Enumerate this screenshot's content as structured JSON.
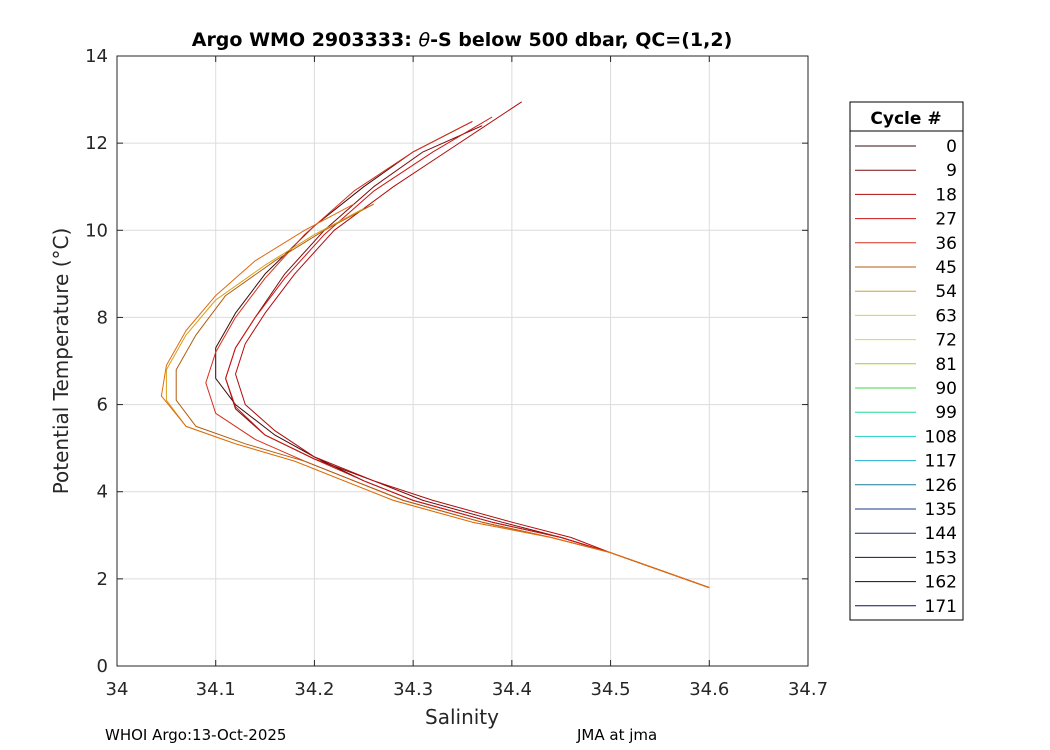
{
  "chart_data": {
    "type": "line",
    "title_prefix": "Argo WMO 2903333: ",
    "title_theta": "θ",
    "title_suffix": "-S below 500 dbar,  QC=(1,2)",
    "xlabel": "Salinity",
    "ylabel": "Potential Temperature (°C)",
    "xlim": [
      34.0,
      34.7
    ],
    "ylim": [
      0,
      14
    ],
    "xticks": [
      "34",
      "34.1",
      "34.2",
      "34.3",
      "34.4",
      "34.5",
      "34.6",
      "34.7"
    ],
    "yticks": [
      "0",
      "2",
      "4",
      "6",
      "8",
      "10",
      "12",
      "14"
    ],
    "grid": true,
    "legend": {
      "title": "Cycle #",
      "placement": "right",
      "entries": [
        "0",
        "9",
        "18",
        "27",
        "36",
        "45",
        "54",
        "63",
        "72",
        "81",
        "90",
        "99",
        "108",
        "117",
        "126",
        "135",
        "144",
        "153",
        "162",
        "171"
      ],
      "colors": [
        "#3a0b0b",
        "#7a0b0b",
        "#b10a0a",
        "#cc1414",
        "#d8301c",
        "#b05e10",
        "#d8a018",
        "#e8d020",
        "#d8e020",
        "#90d820",
        "#40d840",
        "#20d890",
        "#20d0c8",
        "#20b0d0",
        "#1a7a9a",
        "#1a3a8a",
        "#102a70",
        "#0a1a50",
        "#06102e",
        "#0a1060"
      ]
    },
    "series": [
      {
        "color": "#3a0b0b",
        "x": [
          34.6,
          34.55,
          34.5,
          34.45,
          34.38,
          34.3,
          34.25,
          34.2,
          34.16,
          34.12,
          34.1,
          34.1,
          34.12,
          34.15,
          34.2,
          34.25,
          34.3,
          34.36
        ],
        "y": [
          1.8,
          2.2,
          2.6,
          2.95,
          3.3,
          3.8,
          4.25,
          4.8,
          5.3,
          6.0,
          6.6,
          7.3,
          8.1,
          9.0,
          10.1,
          11.0,
          11.8,
          12.5
        ]
      },
      {
        "color": "#7a0b0b",
        "x": [
          34.6,
          34.55,
          34.5,
          34.45,
          34.39,
          34.31,
          34.26,
          34.2,
          34.15,
          34.12,
          34.11,
          34.12,
          34.14,
          34.17,
          34.21,
          34.26,
          34.31,
          34.37
        ],
        "y": [
          1.8,
          2.2,
          2.6,
          2.95,
          3.3,
          3.8,
          4.25,
          4.75,
          5.3,
          5.9,
          6.6,
          7.3,
          8.0,
          9.0,
          10.0,
          11.0,
          11.8,
          12.4
        ]
      },
      {
        "color": "#b10a0a",
        "x": [
          34.6,
          34.55,
          34.5,
          34.46,
          34.4,
          34.32,
          34.26,
          34.2,
          34.16,
          34.13,
          34.12,
          34.13,
          34.15,
          34.18,
          34.22,
          34.28,
          34.34,
          34.41
        ],
        "y": [
          1.8,
          2.2,
          2.6,
          2.95,
          3.3,
          3.8,
          4.25,
          4.8,
          5.4,
          6.0,
          6.7,
          7.4,
          8.1,
          9.0,
          10.0,
          11.0,
          11.9,
          12.95
        ]
      },
      {
        "color": "#cc1414",
        "x": [
          34.6,
          34.55,
          34.5,
          34.45,
          34.38,
          34.3,
          34.25,
          34.2,
          34.15,
          34.12,
          34.11,
          34.12,
          34.14,
          34.17,
          34.21,
          34.26,
          34.32,
          34.38
        ],
        "y": [
          1.8,
          2.2,
          2.6,
          2.95,
          3.3,
          3.8,
          4.25,
          4.75,
          5.3,
          5.95,
          6.6,
          7.3,
          8.0,
          8.9,
          9.9,
          10.9,
          11.8,
          12.6
        ]
      },
      {
        "color": "#d8301c",
        "x": [
          34.6,
          34.55,
          34.5,
          34.44,
          34.37,
          34.29,
          34.24,
          34.19,
          34.14,
          34.1,
          34.09,
          34.1,
          34.12,
          34.15,
          34.19,
          34.24,
          34.3,
          34.36
        ],
        "y": [
          1.8,
          2.2,
          2.6,
          2.95,
          3.3,
          3.8,
          4.25,
          4.7,
          5.2,
          5.8,
          6.5,
          7.2,
          8.0,
          8.9,
          9.9,
          10.9,
          11.8,
          12.5
        ]
      },
      {
        "color": "#b05e10",
        "x": [
          34.6,
          34.55,
          34.5,
          34.44,
          34.37,
          34.29,
          34.24,
          34.19,
          34.13,
          34.08,
          34.06,
          34.06,
          34.08,
          34.11,
          34.16,
          34.21,
          34.26
        ],
        "y": [
          1.8,
          2.2,
          2.6,
          2.95,
          3.3,
          3.8,
          4.25,
          4.7,
          5.1,
          5.5,
          6.1,
          6.8,
          7.6,
          8.5,
          9.3,
          10.0,
          10.6
        ]
      },
      {
        "color": "#d8a018",
        "x": [
          34.6,
          34.55,
          34.5,
          34.44,
          34.36,
          34.28,
          34.23,
          34.18,
          34.12,
          34.07,
          34.05,
          34.05,
          34.07,
          34.1,
          34.15,
          34.2,
          34.25
        ],
        "y": [
          1.8,
          2.2,
          2.6,
          2.95,
          3.3,
          3.8,
          4.25,
          4.7,
          5.1,
          5.5,
          6.1,
          6.8,
          7.6,
          8.4,
          9.2,
          9.9,
          10.5
        ]
      },
      {
        "color": "#e06a12",
        "x": [
          34.6,
          34.55,
          34.5,
          34.44,
          34.36,
          34.28,
          34.23,
          34.18,
          34.12,
          34.07,
          34.045,
          34.05,
          34.07,
          34.1,
          34.14,
          34.19,
          34.24
        ],
        "y": [
          1.8,
          2.2,
          2.6,
          2.95,
          3.3,
          3.8,
          4.25,
          4.7,
          5.1,
          5.5,
          6.2,
          6.9,
          7.7,
          8.5,
          9.3,
          10.0,
          10.6
        ]
      }
    ]
  },
  "footer": {
    "left": "WHOI Argo:13-Oct-2025",
    "right": "JMA at jma"
  }
}
